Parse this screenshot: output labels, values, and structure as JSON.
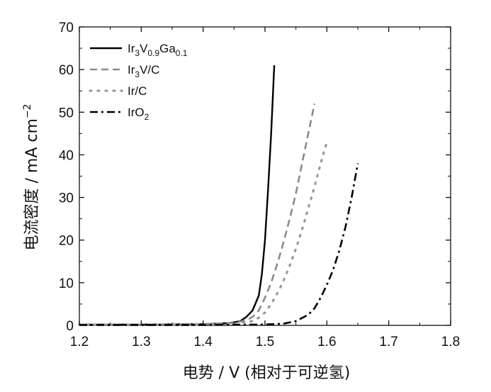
{
  "chart_data": {
    "type": "line",
    "xlabel": "电势 / V (相对于可逆氢)",
    "ylabel": "电流密度 / mA cm",
    "ylabel_sup": "−2",
    "xlim": [
      1.2,
      1.8
    ],
    "ylim": [
      0,
      70
    ],
    "x_ticks": [
      "1.2",
      "1.3",
      "1.4",
      "1.5",
      "1.6",
      "1.7",
      "1.8"
    ],
    "y_ticks": [
      "0",
      "10",
      "20",
      "30",
      "40",
      "50",
      "60",
      "70"
    ],
    "grid": false,
    "legend_position": "top-left",
    "series": [
      {
        "name": "Ir3V0.9Ga0.1",
        "legend": {
          "base": "Ir",
          "sub1": "3",
          "mid": "V",
          "sub2": "0.9",
          "mid2": "Ga",
          "sub3": "0.1"
        },
        "style": "solid",
        "x": [
          1.2,
          1.3,
          1.4,
          1.44,
          1.46,
          1.47,
          1.48,
          1.49,
          1.495,
          1.5,
          1.505,
          1.51,
          1.515
        ],
        "y": [
          0.2,
          0.2,
          0.3,
          0.5,
          1.0,
          2.0,
          3.5,
          7.0,
          12.0,
          20.0,
          32.0,
          45.0,
          61.0
        ]
      },
      {
        "name": "Ir3V/C",
        "legend": {
          "base": "Ir",
          "sub1": "3",
          "mid": "V/C"
        },
        "style": "dash",
        "x": [
          1.2,
          1.3,
          1.4,
          1.45,
          1.47,
          1.48,
          1.49,
          1.5,
          1.51,
          1.52,
          1.53,
          1.54,
          1.55,
          1.56,
          1.57,
          1.58
        ],
        "y": [
          0.2,
          0.2,
          0.3,
          0.6,
          1.2,
          2.0,
          3.5,
          6.5,
          10.0,
          14.5,
          19.5,
          25.0,
          31.0,
          38.0,
          45.0,
          52.0
        ]
      },
      {
        "name": "Ir/C",
        "legend": {
          "base": "Ir/C"
        },
        "style": "dot",
        "x": [
          1.2,
          1.3,
          1.4,
          1.45,
          1.48,
          1.49,
          1.5,
          1.51,
          1.52,
          1.53,
          1.54,
          1.55,
          1.56,
          1.57,
          1.58,
          1.59,
          1.6
        ],
        "y": [
          0.2,
          0.2,
          0.2,
          0.4,
          1.0,
          1.8,
          3.0,
          5.0,
          7.5,
          10.5,
          14.0,
          18.0,
          22.5,
          27.5,
          32.5,
          38.0,
          43.0
        ]
      },
      {
        "name": "IrO2",
        "legend": {
          "base": "IrO",
          "sub1": "2"
        },
        "style": "dashdot",
        "x": [
          1.2,
          1.4,
          1.5,
          1.53,
          1.55,
          1.57,
          1.58,
          1.59,
          1.6,
          1.61,
          1.62,
          1.63,
          1.64,
          1.65
        ],
        "y": [
          0.1,
          0.1,
          0.2,
          0.4,
          1.0,
          2.5,
          4.0,
          6.5,
          9.5,
          13.0,
          17.5,
          23.0,
          30.0,
          38.0
        ]
      }
    ]
  }
}
